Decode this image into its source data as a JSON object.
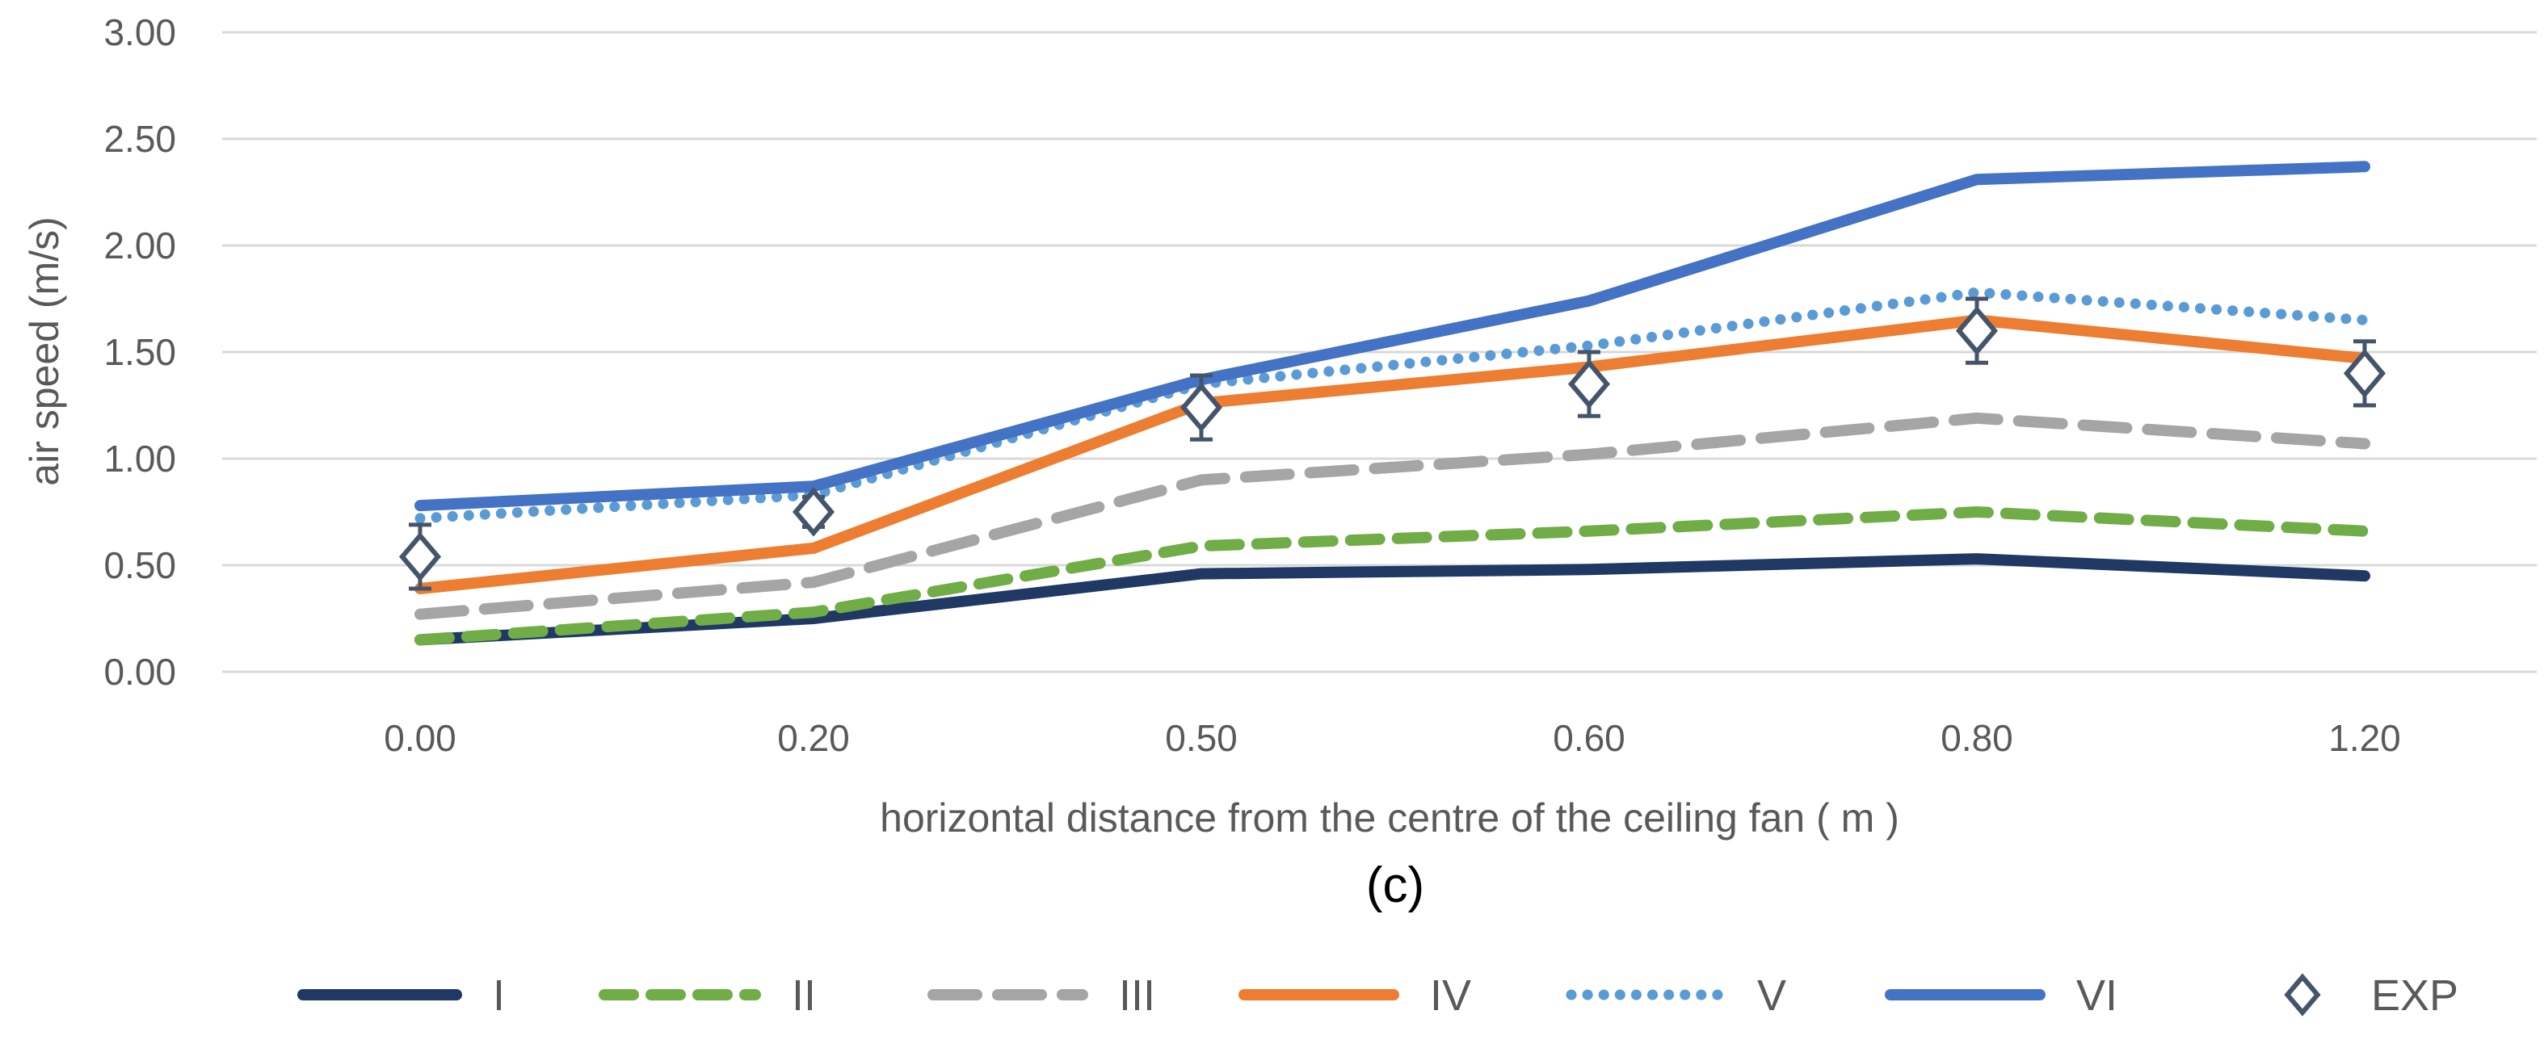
{
  "chart_data": {
    "type": "line",
    "panel_label": "(c)",
    "title": "",
    "xlabel": "horizontal distance from the centre of the ceiling fan ( m )",
    "ylabel": "air speed (m/s)",
    "categories": [
      "0.00",
      "0.20",
      "0.50",
      "0.60",
      "0.80",
      "1.20"
    ],
    "ylim": [
      0,
      3
    ],
    "yticks": [
      "0.00",
      "0.50",
      "1.00",
      "1.50",
      "2.00",
      "2.50",
      "3.00"
    ],
    "grid": true,
    "legend_position": "bottom",
    "series": [
      {
        "name": "I",
        "values": [
          0.15,
          0.25,
          0.46,
          0.48,
          0.53,
          0.45
        ],
        "color": "#203864",
        "style": "solid"
      },
      {
        "name": "II",
        "values": [
          0.15,
          0.28,
          0.59,
          0.66,
          0.75,
          0.66
        ],
        "color": "#70ad47",
        "style": "dashed"
      },
      {
        "name": "III",
        "values": [
          0.27,
          0.42,
          0.9,
          1.02,
          1.19,
          1.07
        ],
        "color": "#a5a5a5",
        "style": "longdash"
      },
      {
        "name": "IV",
        "values": [
          0.39,
          0.58,
          1.26,
          1.43,
          1.65,
          1.47
        ],
        "color": "#ed7d31",
        "style": "solid"
      },
      {
        "name": "V",
        "values": [
          0.72,
          0.83,
          1.35,
          1.53,
          1.78,
          1.65
        ],
        "color": "#5b9bd5",
        "style": "dotted"
      },
      {
        "name": "VI",
        "values": [
          0.78,
          0.87,
          1.37,
          1.74,
          2.31,
          2.37
        ],
        "color": "#4472c4",
        "style": "solid"
      }
    ],
    "experimental": {
      "name": "EXP",
      "values": [
        0.54,
        0.75,
        1.24,
        1.35,
        1.6,
        1.4
      ],
      "error": [
        0.15,
        0.07,
        0.15,
        0.15,
        0.15,
        0.15
      ],
      "color": "#44546a"
    }
  }
}
